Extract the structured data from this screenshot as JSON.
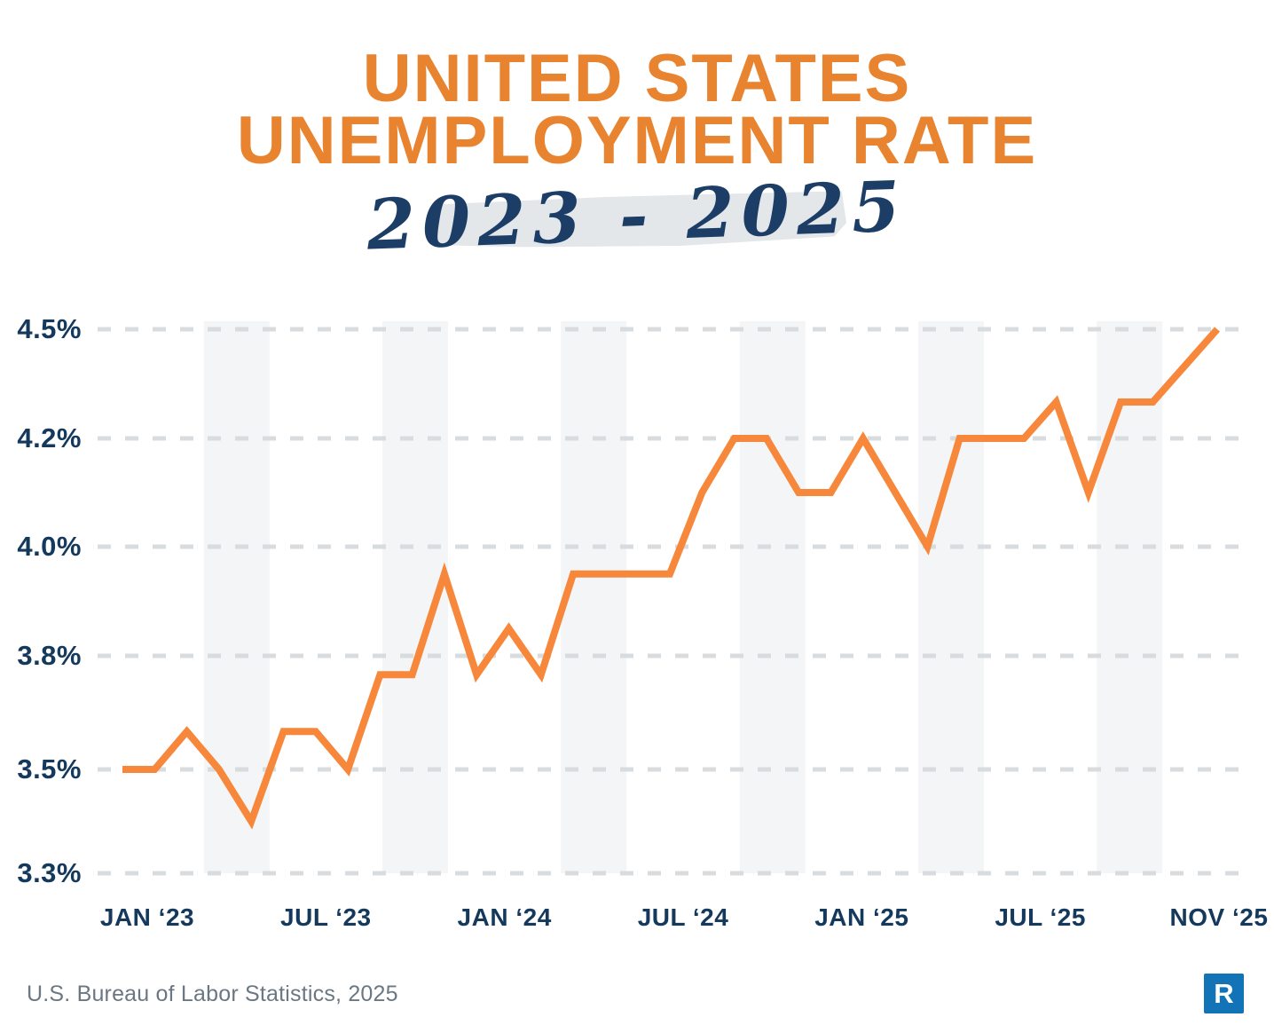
{
  "header": {
    "title_line1": "UNITED STATES",
    "title_line2": "UNEMPLOYMENT RATE",
    "subtitle": "2023 - 2025",
    "title_color": "#E8832F",
    "subtitle_color": "#1C3E66",
    "subtitle_highlight_color": "#E3E7EA"
  },
  "chart_data": {
    "type": "line",
    "title": "United States Unemployment Rate 2023-2025",
    "x": [
      "Jan 2023",
      "Feb 2023",
      "Mar 2023",
      "Apr 2023",
      "May 2023",
      "Jun 2023",
      "Jul 2023",
      "Aug 2023",
      "Sep 2023",
      "Oct 2023",
      "Nov 2023",
      "Dec 2023",
      "Jan 2024",
      "Feb 2024",
      "Mar 2024",
      "Apr 2024",
      "May 2024",
      "Jun 2024",
      "Jul 2024",
      "Aug 2024",
      "Sep 2024",
      "Oct 2024",
      "Nov 2024",
      "Dec 2024",
      "Jan 2025",
      "Feb 2025",
      "Mar 2025",
      "Apr 2025",
      "May 2025",
      "Jun 2025",
      "Jul 2025",
      "Aug 2025",
      "Sep 2025",
      "Oct 2025",
      "Nov 2025"
    ],
    "values": [
      3.5,
      3.5,
      3.6,
      3.5,
      3.4,
      3.6,
      3.6,
      3.5,
      3.75,
      3.75,
      3.95,
      3.75,
      3.85,
      3.75,
      3.95,
      3.95,
      3.95,
      3.95,
      4.1,
      4.2,
      4.2,
      4.1,
      4.1,
      4.2,
      4.1,
      4.0,
      4.2,
      4.2,
      4.2,
      4.3,
      4.1,
      4.3,
      4.3,
      4.4,
      4.5
    ],
    "unit": "%",
    "x_tick_labels": [
      "JAN ‘23",
      "JUL ‘23",
      "JAN ‘24",
      "JUL ‘24",
      "JAN ‘25",
      "JUL ‘25",
      "NOV ‘25"
    ],
    "y_tick_labels": [
      "4.5%",
      "4.2%",
      "4.0%",
      "3.8%",
      "3.5%",
      "3.3%"
    ],
    "y_tick_values": [
      4.5,
      4.2,
      4.0,
      3.8,
      3.5,
      3.3
    ],
    "y_axis_note": "tick labels evenly spaced although values are non-uniform",
    "ylim": [
      3.3,
      4.5
    ],
    "grid": "dashed horizontal gridlines, no axis lines",
    "legend": "none",
    "series_color": "#F6873B",
    "grid_color": "#D8DCDF",
    "band_color": "#F3F5F6",
    "axis_label_color": "#14395C"
  },
  "footer": {
    "source": "U.S. Bureau of Labor Statistics, 2025",
    "logo_letter": "R",
    "logo_color": "#1273B7"
  }
}
